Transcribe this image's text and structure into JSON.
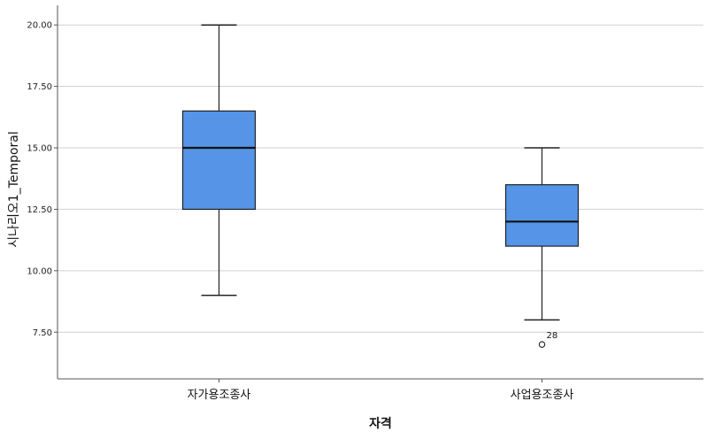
{
  "chart_data": {
    "type": "boxplot",
    "xlabel": "자격",
    "ylabel": "시나리오1_Temporal",
    "ylim": [
      5.6,
      20.8
    ],
    "yticks": [
      "7.50",
      "10.00",
      "12.50",
      "15.00",
      "17.50",
      "20.00"
    ],
    "grid": true,
    "box_color": "#5594e6",
    "categories": [
      "자가용조종사",
      "사업용조종사"
    ],
    "boxes": [
      {
        "category": "자가용조종사",
        "min": 9.0,
        "q1": 12.5,
        "median": 15.0,
        "q3": 16.5,
        "max": 20.0,
        "outliers": []
      },
      {
        "category": "사업용조종사",
        "min": 8.0,
        "q1": 11.0,
        "median": 12.0,
        "q3": 13.5,
        "max": 15.0,
        "outliers": [
          {
            "value": 7.0,
            "label": "28"
          }
        ]
      }
    ]
  }
}
